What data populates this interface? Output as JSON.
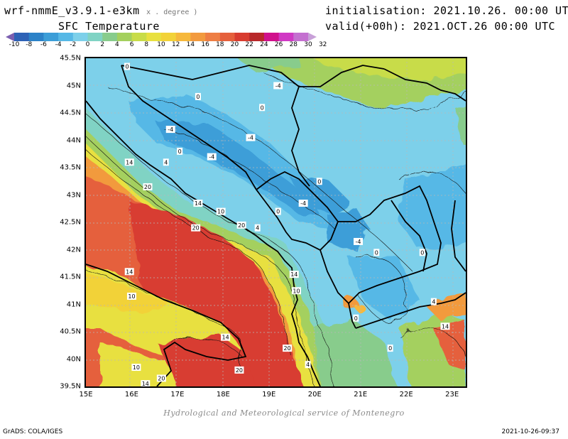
{
  "header": {
    "model": "wrf-nmmE_v3.9.1-e3km",
    "model_sub": "x . degree )",
    "variable": "SFC Temperature",
    "init": "initialisation: 2021.10.26. 00:00 UTC",
    "valid": "valid(+00h): 2021.OCT.26 00:00 UTC"
  },
  "colorbar": {
    "labels": [
      "-10",
      "-8",
      "-6",
      "-4",
      "-2",
      "0",
      "2",
      "4",
      "6",
      "8",
      "10",
      "12",
      "14",
      "16",
      "18",
      "20",
      "22",
      "24",
      "26",
      "28",
      "30",
      "32"
    ],
    "colors": [
      "#7b5fb0",
      "#2e62b6",
      "#2c82c8",
      "#3c9ed8",
      "#56b8e6",
      "#7dd0ea",
      "#80d3c4",
      "#88cc8c",
      "#a4d05e",
      "#c8dc48",
      "#e8e040",
      "#f2d238",
      "#f6b83c",
      "#f29a3e",
      "#ee7e44",
      "#e5603c",
      "#d83c30",
      "#b8282a",
      "#d0108c",
      "#d038c4",
      "#c470d0",
      "#c8a0d8"
    ]
  },
  "axes": {
    "lat_labels": [
      "45.5N",
      "45N",
      "44.5N",
      "44N",
      "43.5N",
      "43N",
      "42.5N",
      "42N",
      "41.5N",
      "41N",
      "40.5N",
      "40N",
      "39.5N"
    ],
    "lon_labels": [
      "15E",
      "16E",
      "17E",
      "18E",
      "19E",
      "20E",
      "21E",
      "22E",
      "23E"
    ],
    "lat_range": [
      39.5,
      45.5
    ],
    "lon_range": [
      15,
      23.3
    ]
  },
  "contour_labels": [
    {
      "t": "0",
      "lon": 15.9,
      "lat": 45.35
    },
    {
      "t": "-4",
      "lon": 19.2,
      "lat": 45.0
    },
    {
      "t": "0",
      "lon": 17.45,
      "lat": 44.8
    },
    {
      "t": "0",
      "lon": 18.85,
      "lat": 44.6
    },
    {
      "t": "-4",
      "lon": 16.85,
      "lat": 44.2
    },
    {
      "t": "-4",
      "lon": 18.6,
      "lat": 44.05
    },
    {
      "t": "0",
      "lon": 17.05,
      "lat": 43.8
    },
    {
      "t": "-4",
      "lon": 17.75,
      "lat": 43.7
    },
    {
      "t": "14",
      "lon": 15.95,
      "lat": 43.6
    },
    {
      "t": "4",
      "lon": 16.75,
      "lat": 43.6
    },
    {
      "t": "20",
      "lon": 16.35,
      "lat": 43.15
    },
    {
      "t": "0",
      "lon": 20.1,
      "lat": 43.25
    },
    {
      "t": "-4",
      "lon": 19.75,
      "lat": 42.85
    },
    {
      "t": "14",
      "lon": 17.45,
      "lat": 42.85
    },
    {
      "t": "10",
      "lon": 17.95,
      "lat": 42.7
    },
    {
      "t": "0",
      "lon": 19.2,
      "lat": 42.7
    },
    {
      "t": "20",
      "lon": 18.4,
      "lat": 42.45
    },
    {
      "t": "4",
      "lon": 18.75,
      "lat": 42.4
    },
    {
      "t": "20",
      "lon": 17.4,
      "lat": 42.4
    },
    {
      "t": "-4",
      "lon": 20.95,
      "lat": 42.15
    },
    {
      "t": "0",
      "lon": 21.35,
      "lat": 41.95
    },
    {
      "t": "0",
      "lon": 22.35,
      "lat": 41.95
    },
    {
      "t": "14",
      "lon": 15.95,
      "lat": 41.6
    },
    {
      "t": "14",
      "lon": 19.55,
      "lat": 41.55
    },
    {
      "t": "10",
      "lon": 16.0,
      "lat": 41.15
    },
    {
      "t": "10",
      "lon": 19.6,
      "lat": 41.25
    },
    {
      "t": "4",
      "lon": 22.6,
      "lat": 41.05
    },
    {
      "t": "0",
      "lon": 20.9,
      "lat": 40.75
    },
    {
      "t": "14",
      "lon": 22.85,
      "lat": 40.6
    },
    {
      "t": "14",
      "lon": 18.05,
      "lat": 40.4
    },
    {
      "t": "20",
      "lon": 19.4,
      "lat": 40.2
    },
    {
      "t": "0",
      "lon": 21.65,
      "lat": 40.2
    },
    {
      "t": "10",
      "lon": 16.1,
      "lat": 39.85
    },
    {
      "t": "20",
      "lon": 16.65,
      "lat": 39.65
    },
    {
      "t": "20",
      "lon": 18.35,
      "lat": 39.8
    },
    {
      "t": "4",
      "lon": 19.85,
      "lat": 39.9
    },
    {
      "t": "14",
      "lon": 16.3,
      "lat": 39.55
    }
  ],
  "footer": {
    "credit": "Hydrological and Meteorological service of Montenegro",
    "grads": "GrADS: COLA/IGES",
    "timestamp": "2021-10-26-09:37"
  }
}
